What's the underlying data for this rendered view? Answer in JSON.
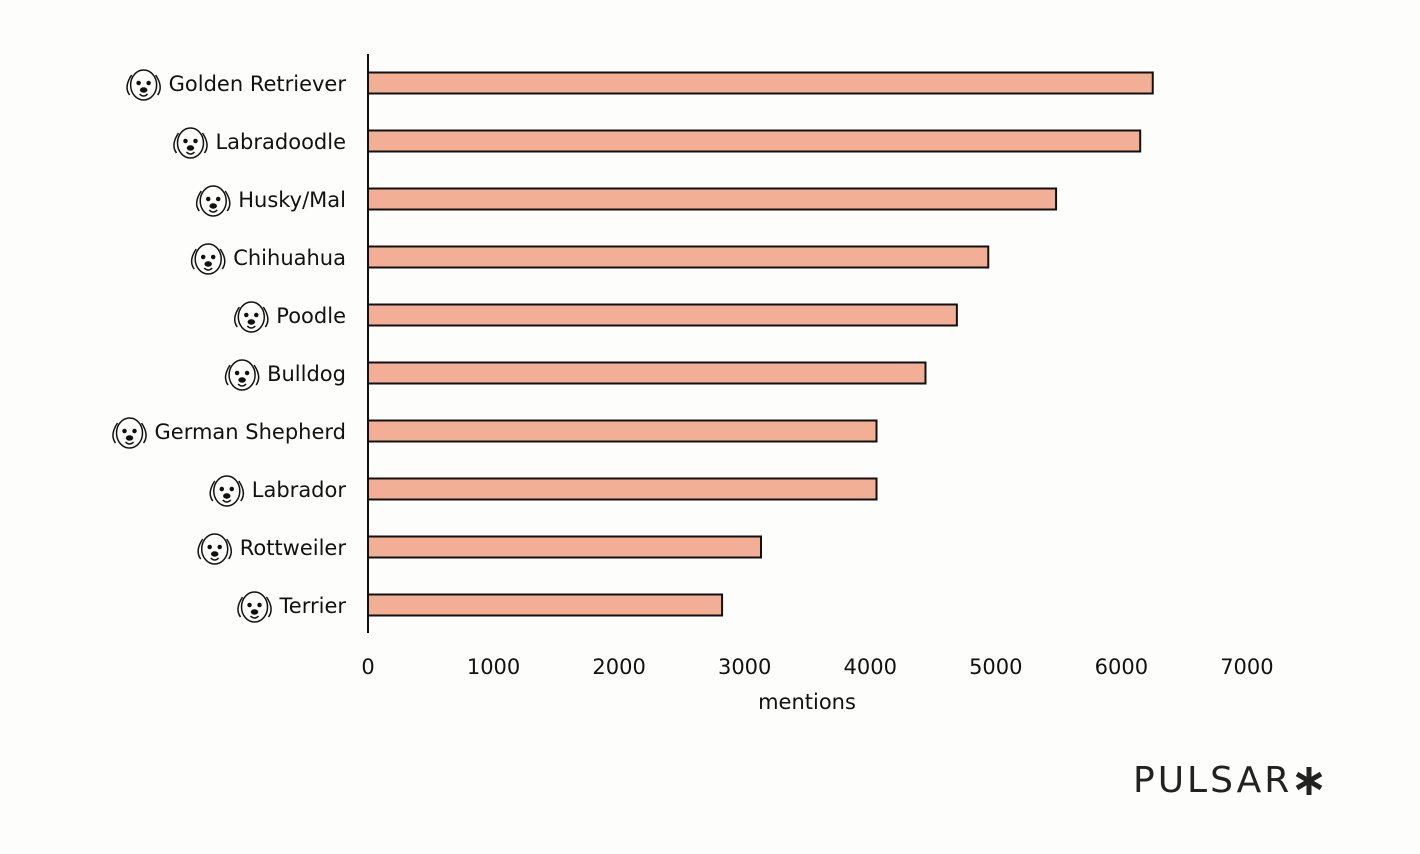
{
  "chart_data": {
    "type": "bar",
    "orientation": "horizontal",
    "categories": [
      "Golden Retriever",
      "Labradoodle",
      "Husky/Mal",
      "Chihuahua",
      "Poodle",
      "Bulldog",
      "German Shepherd",
      "Labrador",
      "Rottweiler",
      "Terrier"
    ],
    "icons": [
      "golden-retriever-icon",
      "labradoodle-icon",
      "husky-icon",
      "chihuahua-icon",
      "poodle-icon",
      "bulldog-icon",
      "german-shepherd-icon",
      "labrador-icon",
      "rottweiler-icon",
      "terrier-icon"
    ],
    "values": [
      6250,
      6150,
      5480,
      4940,
      4690,
      4440,
      4050,
      4050,
      3130,
      2820
    ],
    "xlabel": "mentions",
    "ylabel": "",
    "xlim": [
      0,
      7000
    ],
    "xticks": [
      0,
      1000,
      2000,
      3000,
      4000,
      5000,
      6000,
      7000
    ],
    "bar_color": "#f2af96",
    "bar_edge_color": "#111111",
    "grid": false
  },
  "brand": {
    "text": "PULSAR",
    "mark": "asterisk-icon"
  }
}
